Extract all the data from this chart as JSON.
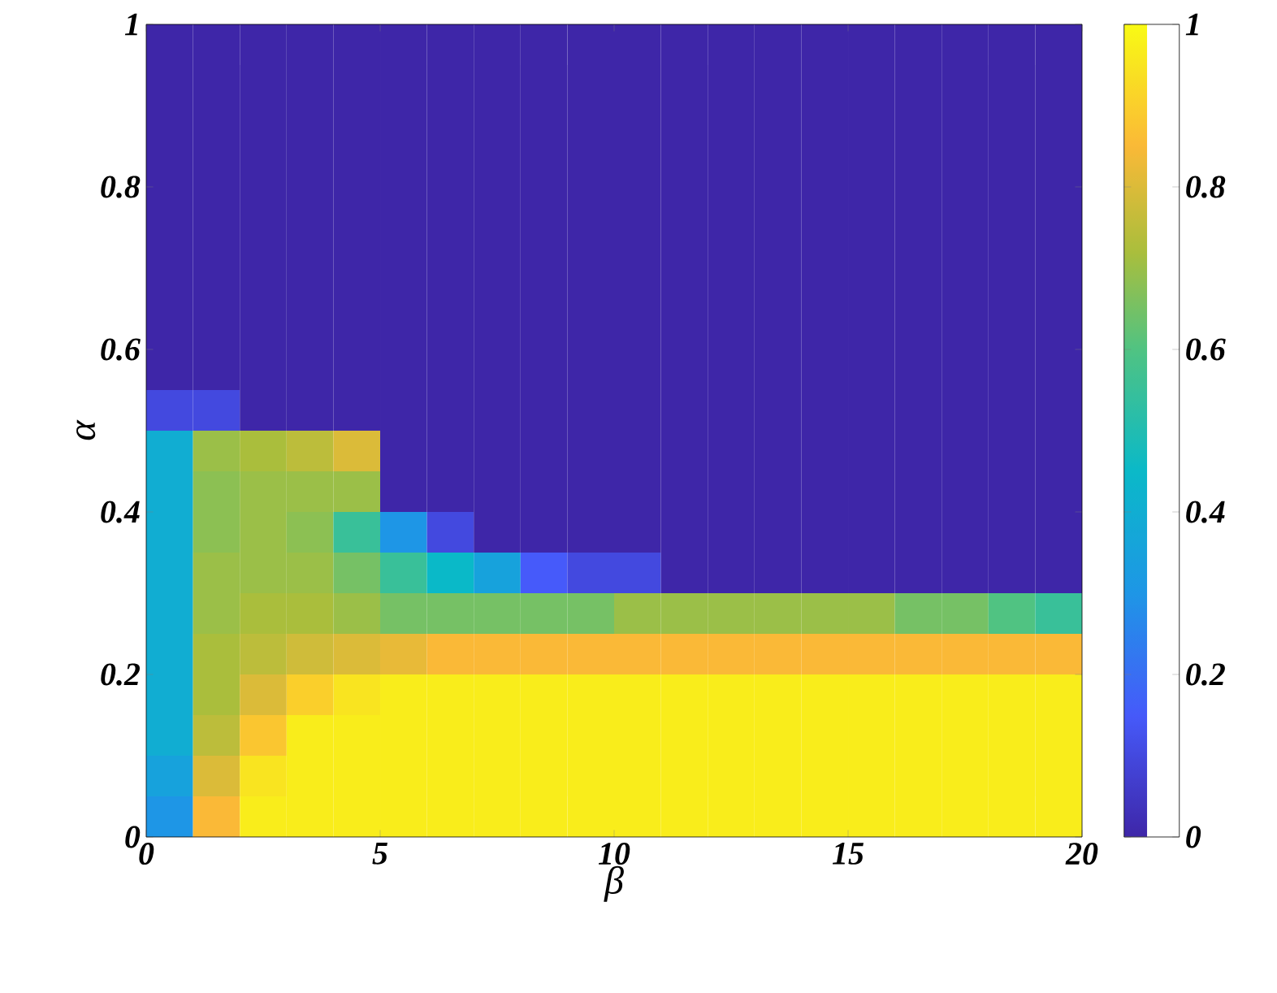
{
  "chart_data": {
    "type": "heatmap",
    "xlabel": "β",
    "ylabel": "α",
    "x": [
      0.5,
      1.5,
      2.5,
      3.5,
      4.5,
      5.5,
      6.5,
      7.5,
      8.5,
      9.5,
      10.5,
      11.5,
      12.5,
      13.5,
      14.5,
      15.5,
      16.5,
      17.5,
      18.5,
      19.5
    ],
    "y": [
      0.975,
      0.925,
      0.875,
      0.825,
      0.775,
      0.725,
      0.675,
      0.625,
      0.575,
      0.525,
      0.475,
      0.425,
      0.375,
      0.325,
      0.275,
      0.225,
      0.175,
      0.125,
      0.075,
      0.025
    ],
    "xlim": [
      0,
      20
    ],
    "ylim": [
      0,
      1
    ],
    "xticks": [
      0,
      5,
      10,
      15,
      20
    ],
    "yticks": [
      0,
      0.2,
      0.4,
      0.6,
      0.8,
      1
    ],
    "clim": [
      0,
      1
    ],
    "cticks": [
      0,
      0.2,
      0.4,
      0.6,
      0.8,
      1
    ],
    "cells": [
      [
        0,
        0,
        0,
        0,
        0,
        0,
        0,
        0,
        0,
        0,
        0,
        0,
        0,
        0,
        0,
        0,
        0,
        0,
        0,
        0
      ],
      [
        0,
        0,
        0,
        0,
        0,
        0,
        0,
        0,
        0,
        0,
        0,
        0,
        0,
        0,
        0,
        0,
        0,
        0,
        0,
        0
      ],
      [
        0,
        0,
        0,
        0,
        0,
        0,
        0,
        0,
        0,
        0,
        0,
        0,
        0,
        0,
        0,
        0,
        0,
        0,
        0,
        0
      ],
      [
        0,
        0,
        0,
        0,
        0,
        0,
        0,
        0,
        0,
        0,
        0,
        0,
        0,
        0,
        0,
        0,
        0,
        0,
        0,
        0
      ],
      [
        0,
        0,
        0,
        0,
        0,
        0,
        0,
        0,
        0,
        0,
        0,
        0,
        0,
        0,
        0,
        0,
        0,
        0,
        0,
        0
      ],
      [
        0,
        0,
        0,
        0,
        0,
        0,
        0,
        0,
        0,
        0,
        0,
        0,
        0,
        0,
        0,
        0,
        0,
        0,
        0,
        0
      ],
      [
        0,
        0,
        0,
        0,
        0,
        0,
        0,
        0,
        0,
        0,
        0,
        0,
        0,
        0,
        0,
        0,
        0,
        0,
        0,
        0
      ],
      [
        0,
        0,
        0,
        0,
        0,
        0,
        0,
        0,
        0,
        0,
        0,
        0,
        0,
        0,
        0,
        0,
        0,
        0,
        0,
        0
      ],
      [
        0,
        0,
        0,
        0,
        0,
        0,
        0,
        0,
        0,
        0,
        0,
        0,
        0,
        0,
        0,
        0,
        0,
        0,
        0,
        0
      ],
      [
        0.1,
        0.1,
        0,
        0,
        0,
        0,
        0,
        0,
        0,
        0,
        0,
        0,
        0,
        0,
        0,
        0,
        0,
        0,
        0,
        0
      ],
      [
        0.4,
        0.7,
        0.72,
        0.75,
        0.8,
        0,
        0,
        0,
        0,
        0,
        0,
        0,
        0,
        0,
        0,
        0,
        0,
        0,
        0,
        0
      ],
      [
        0.4,
        0.68,
        0.7,
        0.7,
        0.7,
        0,
        0,
        0,
        0,
        0,
        0,
        0,
        0,
        0,
        0,
        0,
        0,
        0,
        0,
        0
      ],
      [
        0.4,
        0.68,
        0.7,
        0.68,
        0.55,
        0.3,
        0.1,
        0,
        0,
        0,
        0,
        0,
        0,
        0,
        0,
        0,
        0,
        0,
        0,
        0
      ],
      [
        0.4,
        0.7,
        0.7,
        0.7,
        0.65,
        0.55,
        0.45,
        0.35,
        0.15,
        0.1,
        0.1,
        0,
        0,
        0,
        0,
        0,
        0,
        0,
        0,
        0
      ],
      [
        0.4,
        0.7,
        0.72,
        0.72,
        0.7,
        0.65,
        0.65,
        0.65,
        0.65,
        0.65,
        0.7,
        0.7,
        0.7,
        0.7,
        0.7,
        0.7,
        0.65,
        0.65,
        0.6,
        0.55
      ],
      [
        0.4,
        0.72,
        0.75,
        0.78,
        0.8,
        0.82,
        0.85,
        0.85,
        0.85,
        0.85,
        0.85,
        0.85,
        0.85,
        0.85,
        0.85,
        0.85,
        0.85,
        0.85,
        0.85,
        0.85
      ],
      [
        0.4,
        0.72,
        0.8,
        0.9,
        0.95,
        0.97,
        0.97,
        0.97,
        0.97,
        0.97,
        0.97,
        0.97,
        0.97,
        0.97,
        0.97,
        0.97,
        0.97,
        0.97,
        0.97,
        0.97
      ],
      [
        0.4,
        0.75,
        0.88,
        0.97,
        0.97,
        0.97,
        0.97,
        0.97,
        0.97,
        0.97,
        0.97,
        0.97,
        0.97,
        0.97,
        0.97,
        0.97,
        0.97,
        0.97,
        0.97,
        0.97
      ],
      [
        0.35,
        0.8,
        0.95,
        0.97,
        0.97,
        0.97,
        0.97,
        0.97,
        0.97,
        0.97,
        0.97,
        0.97,
        0.97,
        0.97,
        0.97,
        0.97,
        0.97,
        0.97,
        0.97,
        0.97
      ],
      [
        0.3,
        0.85,
        0.97,
        0.97,
        0.97,
        0.97,
        0.97,
        0.97,
        0.97,
        0.97,
        0.97,
        0.97,
        0.97,
        0.97,
        0.97,
        0.97,
        0.97,
        0.97,
        0.97,
        0.97
      ]
    ]
  }
}
